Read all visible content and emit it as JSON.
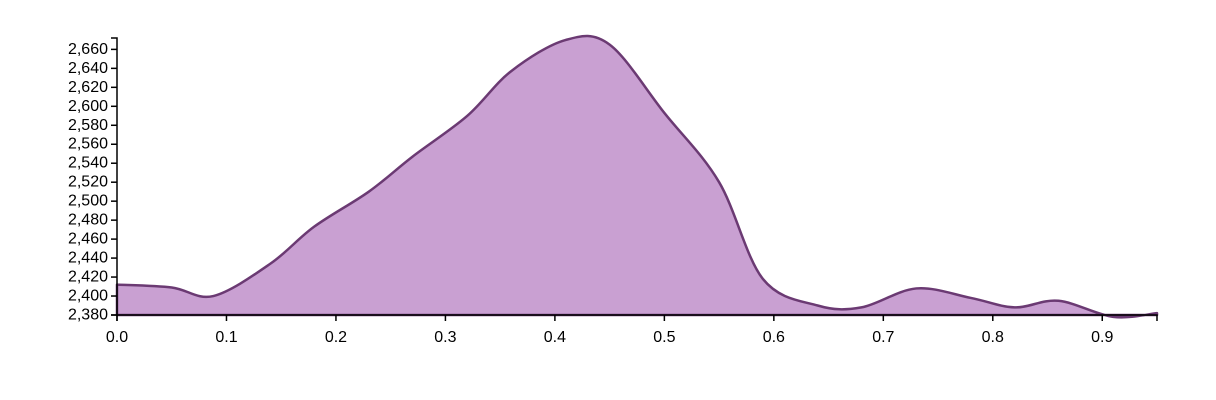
{
  "chart_data": {
    "type": "area",
    "title": "",
    "xlabel": "",
    "ylabel": "",
    "xlim": [
      0.0,
      0.95
    ],
    "ylim": [
      2380,
      2672
    ],
    "x_ticks": [
      0.0,
      0.1,
      0.2,
      0.3,
      0.4,
      0.5,
      0.6,
      0.7,
      0.8,
      0.9
    ],
    "x_tick_labels": [
      "0.0",
      "0.1",
      "0.2",
      "0.3",
      "0.4",
      "0.5",
      "0.6",
      "0.7",
      "0.8",
      "0.9"
    ],
    "y_ticks": [
      2380,
      2400,
      2420,
      2440,
      2460,
      2480,
      2500,
      2520,
      2540,
      2560,
      2580,
      2600,
      2620,
      2640,
      2660
    ],
    "y_tick_labels": [
      "2,380",
      "2,400",
      "2,420",
      "2,440",
      "2,460",
      "2,480",
      "2,500",
      "2,520",
      "2,540",
      "2,560",
      "2,580",
      "2,600",
      "2,620",
      "2,640",
      "2,660"
    ],
    "grid": false,
    "colors": {
      "fill": "#c9a0d2",
      "stroke": "#6b3a73"
    },
    "series": [
      {
        "x": [
          0.0,
          0.05,
          0.088,
          0.14,
          0.18,
          0.23,
          0.27,
          0.32,
          0.36,
          0.41,
          0.45,
          0.5,
          0.55,
          0.59,
          0.64,
          0.68,
          0.73,
          0.78,
          0.82,
          0.86,
          0.91,
          0.95
        ],
        "values": [
          2412,
          2409,
          2400,
          2434,
          2473,
          2510,
          2547,
          2590,
          2637,
          2670,
          2665,
          2593,
          2520,
          2418,
          2390,
          2388,
          2408,
          2398,
          2388,
          2395,
          2378,
          2382
        ]
      }
    ]
  }
}
